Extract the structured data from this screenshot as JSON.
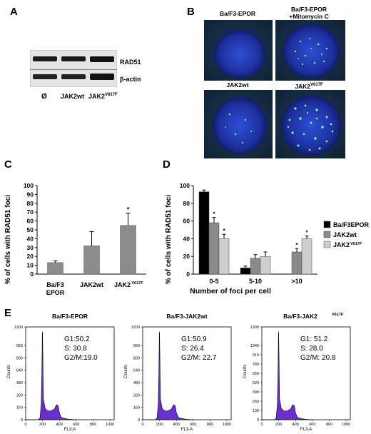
{
  "panel_labels": {
    "a": "A",
    "b": "B",
    "c": "C",
    "d": "D",
    "e": "E"
  },
  "western": {
    "bands": [
      "RAD51",
      "β-actin"
    ],
    "lanes": [
      "Ø",
      "JAK2wt",
      "JAK2"
    ],
    "lane3_sup": "V617F"
  },
  "micrographs": [
    {
      "title": "Ba/F3-EPOR",
      "title2": ""
    },
    {
      "title": "Ba/F3-EPOR",
      "title2": "+Mitomycin C"
    },
    {
      "title": "JAK2wt",
      "title2": ""
    },
    {
      "title": "JAK2",
      "title2": "",
      "sup": "V617F"
    }
  ],
  "chart_data": [
    {
      "type": "bar",
      "panel": "C",
      "categories": [
        "Ba/F3 EPOR",
        "JAK2wt",
        "JAK2V617F"
      ],
      "category_lines": [
        [
          "Ba/F3",
          "EPOR"
        ],
        [
          "JAK2wt"
        ],
        [
          "JAK2",
          "V617F"
        ]
      ],
      "values": [
        13,
        32,
        55
      ],
      "errors": [
        2,
        16,
        14
      ],
      "significance": [
        "",
        "",
        "*"
      ],
      "ylabel": "% of cells with RAD51 foci",
      "ylim": [
        0,
        100
      ],
      "yticks": [
        0,
        10,
        20,
        30,
        40,
        50,
        60,
        70,
        80,
        90,
        100
      ],
      "color": "#8c8c8c"
    },
    {
      "type": "bar",
      "panel": "D",
      "categories": [
        "0-5",
        "5-10",
        ">10"
      ],
      "series": [
        {
          "name": "Ba/F3EPOR",
          "values": [
            93,
            7,
            0
          ],
          "errors": [
            2,
            2,
            0
          ],
          "color": "#000000",
          "sig": [
            "",
            "",
            ""
          ]
        },
        {
          "name": "JAK2wt",
          "values": [
            58,
            18,
            25
          ],
          "errors": [
            6,
            4,
            4
          ],
          "color": "#8a8a8a",
          "sig": [
            "*",
            "",
            "*"
          ]
        },
        {
          "name": "JAK2V617F",
          "values": [
            40,
            20,
            40
          ],
          "errors": [
            5,
            5,
            3
          ],
          "color": "#cfcfcf",
          "sig": [
            "*",
            "",
            "*"
          ]
        }
      ],
      "legend_labels": [
        [
          "Ba/F3EPOR",
          ""
        ],
        [
          "JAK2wt",
          ""
        ],
        [
          "JAK2",
          "V617F"
        ]
      ],
      "ylabel": "% of cells with RAD51 foci",
      "xlabel": "Number of foci per cell",
      "ylim": [
        0,
        100
      ],
      "yticks": [
        0,
        20,
        40,
        60,
        80,
        100
      ],
      "legend": "right"
    },
    {
      "type": "area",
      "panel": "E",
      "histograms": [
        {
          "title": "Ba/F3-EPOR",
          "title_sup": "",
          "g1": "G1:50.2",
          "s": "S: 30.8",
          "g2m": "G2/M:19.0",
          "ymax": 1200,
          "yticks": [
            0,
            160,
            320,
            480,
            640,
            800,
            960,
            1200
          ]
        },
        {
          "title": "Ba/F3-JAK2wt",
          "title_sup": "",
          "g1": "G1:50.9",
          "s": "S: 26.4",
          "g2m": "G2/M: 22.7",
          "ymax": 1200,
          "yticks": [
            0,
            160,
            320,
            480,
            640,
            800,
            960,
            1200
          ]
        },
        {
          "title": "Ba/F3-JAK2",
          "title_sup": "V617F",
          "g1": "G1: 51.2",
          "s": "S: 28.0",
          "g2m": "G2/M: 20.8",
          "ymax": 1300,
          "yticks": [
            0,
            130,
            260,
            390,
            520,
            650,
            780,
            910,
            1040,
            1300
          ]
        }
      ],
      "xlabel": "FL3-A",
      "ylabel": "Counts",
      "xticks": [
        0,
        200,
        400,
        600,
        800,
        1000
      ],
      "fill_color": "#6a2fc9"
    }
  ]
}
